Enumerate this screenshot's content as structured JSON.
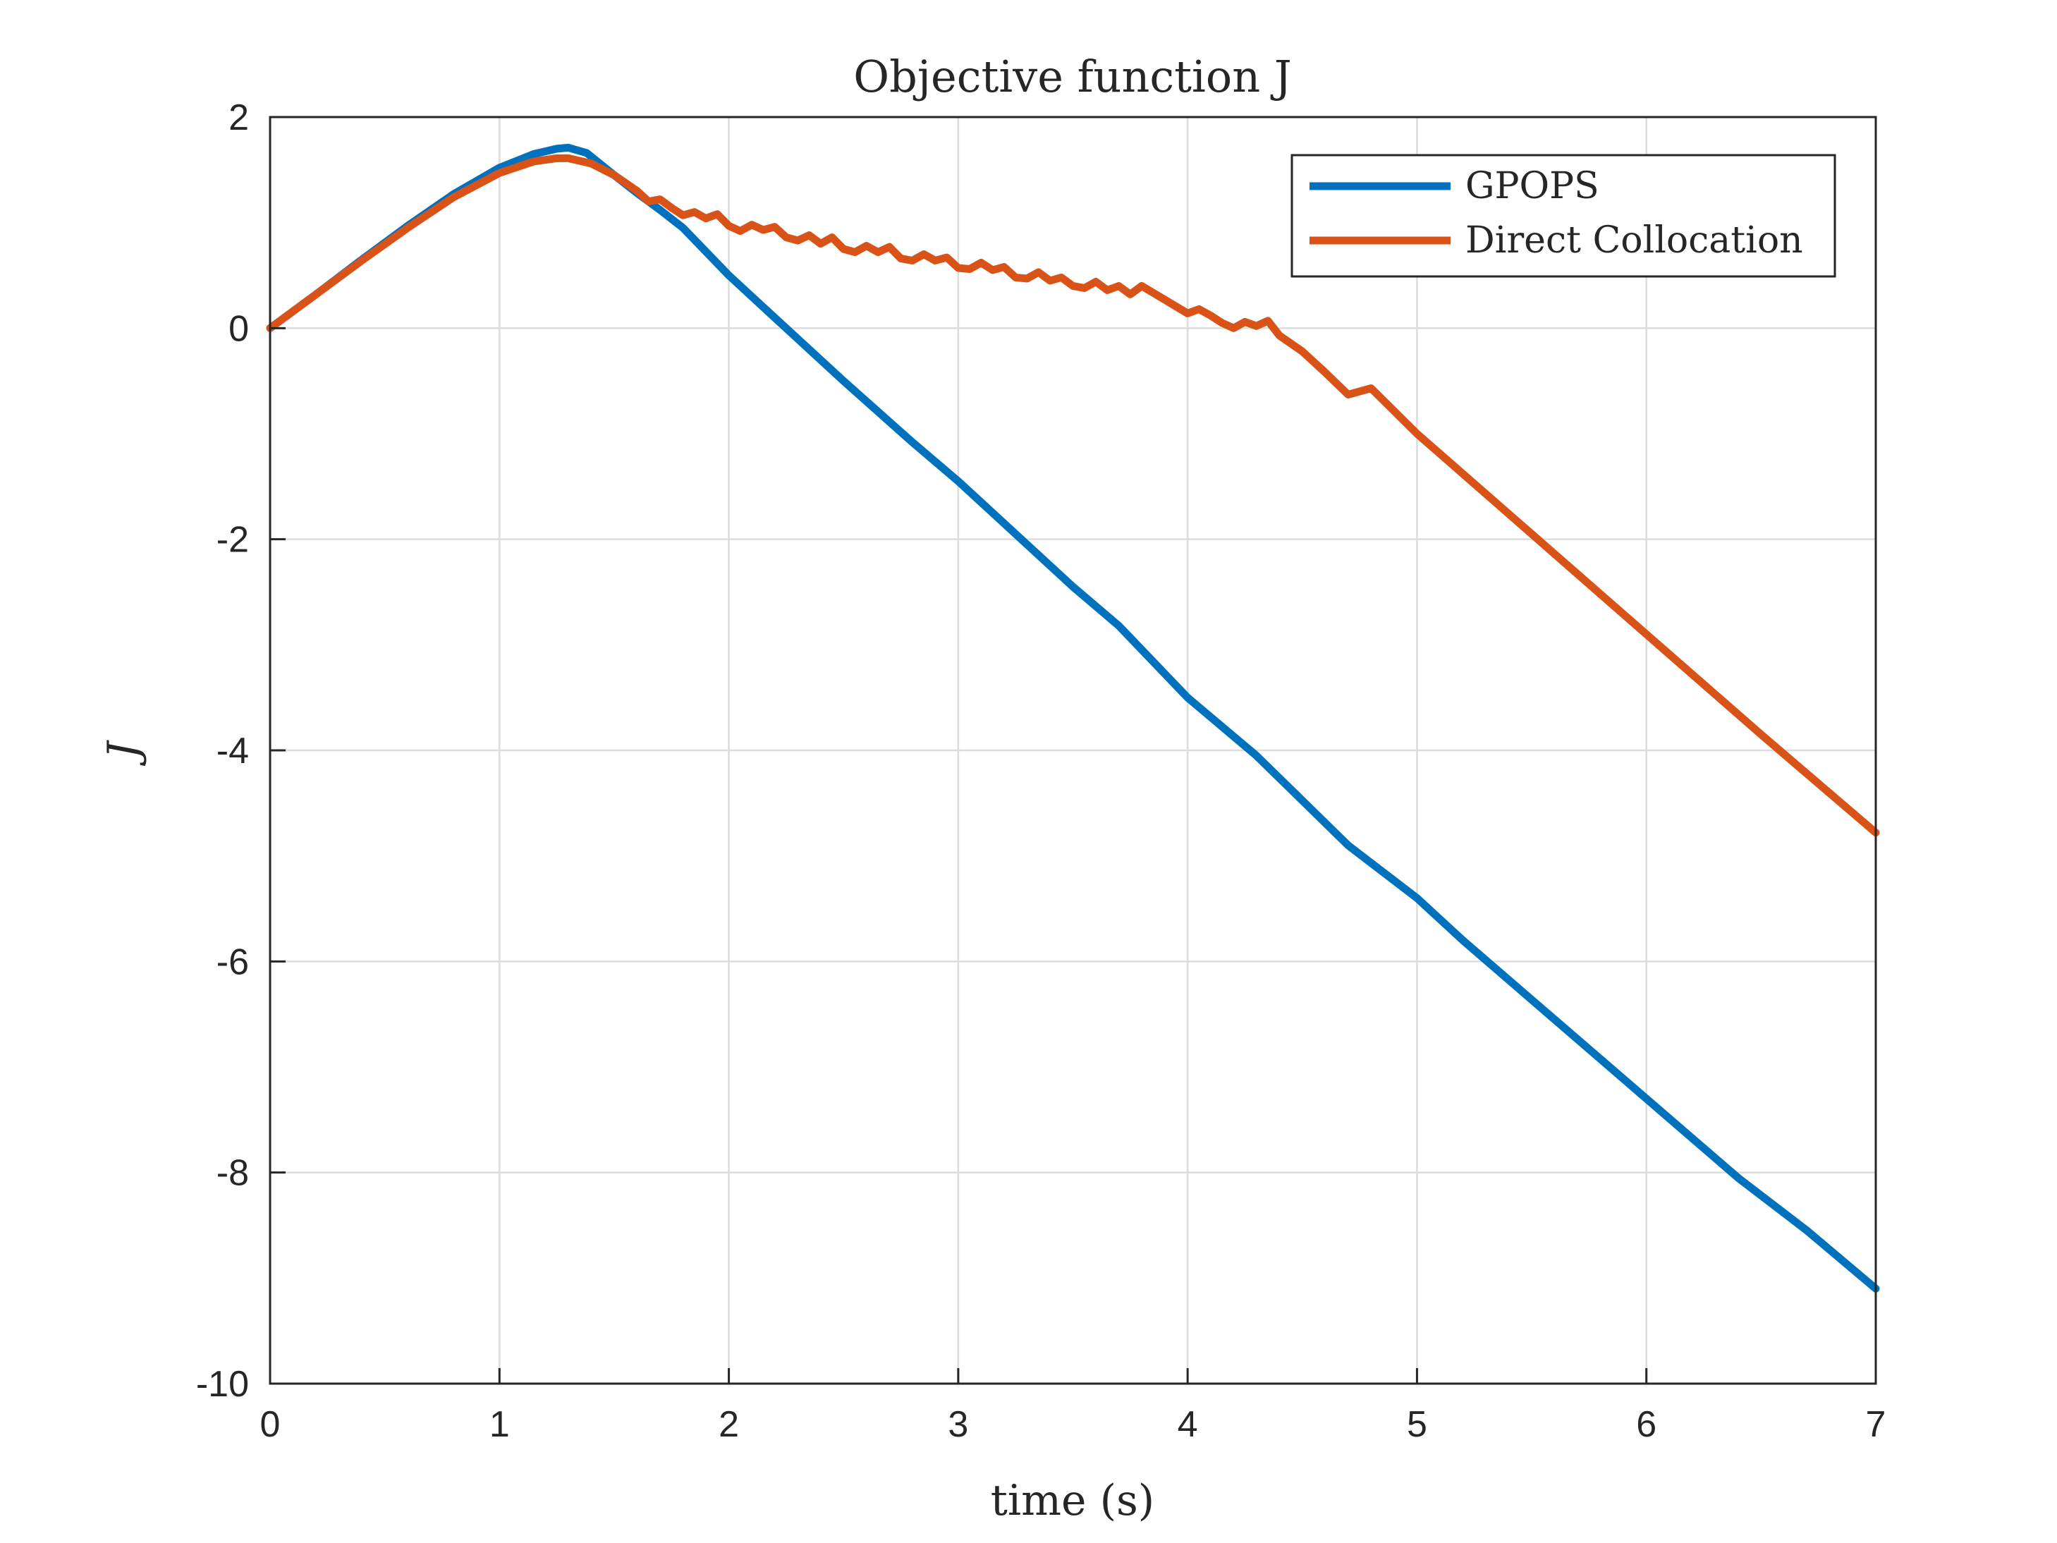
{
  "chart_data": {
    "type": "line",
    "title": "Objective function J",
    "xlabel": "time (s)",
    "ylabel": "J",
    "xlim": [
      0,
      7
    ],
    "ylim": [
      -10,
      2
    ],
    "xticks": [
      "0",
      "1",
      "2",
      "3",
      "4",
      "5",
      "6",
      "7"
    ],
    "yticks": [
      "2",
      "0",
      "-2",
      "-4",
      "-6",
      "-8",
      "-10"
    ],
    "grid": true,
    "legend": "top-right",
    "series": [
      {
        "name": "GPOPS",
        "color": "#0072BD",
        "x": [
          0,
          0.2,
          0.4,
          0.6,
          0.8,
          1.0,
          1.15,
          1.25,
          1.3,
          1.38,
          1.5,
          1.6,
          1.7,
          1.8,
          2.0,
          2.2,
          2.5,
          2.8,
          3.0,
          3.2,
          3.5,
          3.7,
          4.0,
          4.3,
          4.7,
          5.0,
          5.2,
          5.6,
          6.0,
          6.4,
          6.7,
          7.0
        ],
        "y": [
          0.0,
          0.32,
          0.65,
          0.97,
          1.27,
          1.52,
          1.65,
          1.7,
          1.71,
          1.66,
          1.45,
          1.28,
          1.12,
          0.95,
          0.5,
          0.1,
          -0.5,
          -1.08,
          -1.45,
          -1.85,
          -2.45,
          -2.82,
          -3.5,
          -4.05,
          -4.9,
          -5.4,
          -5.8,
          -6.55,
          -7.3,
          -8.05,
          -8.55,
          -9.1
        ]
      },
      {
        "name": "Direct Collocation",
        "color": "#D95319",
        "x": [
          0,
          0.2,
          0.4,
          0.6,
          0.8,
          1.0,
          1.15,
          1.25,
          1.3,
          1.4,
          1.5,
          1.6,
          1.65,
          1.7,
          1.75,
          1.8,
          1.85,
          1.9,
          1.95,
          2.0,
          2.05,
          2.1,
          2.15,
          2.2,
          2.25,
          2.3,
          2.35,
          2.4,
          2.45,
          2.5,
          2.55,
          2.6,
          2.65,
          2.7,
          2.75,
          2.8,
          2.85,
          2.9,
          2.95,
          3.0,
          3.05,
          3.1,
          3.15,
          3.2,
          3.25,
          3.3,
          3.35,
          3.4,
          3.45,
          3.5,
          3.55,
          3.6,
          3.65,
          3.7,
          3.75,
          3.8,
          3.9,
          4.0,
          4.05,
          4.1,
          4.15,
          4.2,
          4.25,
          4.3,
          4.35,
          4.4,
          4.5,
          4.6,
          4.7,
          4.75,
          4.8,
          5.0,
          5.5,
          6.0,
          6.5,
          7.0
        ],
        "y": [
          0.0,
          0.32,
          0.64,
          0.95,
          1.24,
          1.47,
          1.58,
          1.61,
          1.61,
          1.56,
          1.45,
          1.3,
          1.2,
          1.22,
          1.14,
          1.07,
          1.1,
          1.04,
          1.08,
          0.97,
          0.92,
          0.98,
          0.93,
          0.96,
          0.86,
          0.83,
          0.88,
          0.8,
          0.86,
          0.75,
          0.72,
          0.78,
          0.72,
          0.77,
          0.66,
          0.64,
          0.7,
          0.64,
          0.67,
          0.57,
          0.56,
          0.62,
          0.55,
          0.58,
          0.48,
          0.47,
          0.53,
          0.45,
          0.48,
          0.4,
          0.38,
          0.44,
          0.36,
          0.4,
          0.32,
          0.4,
          0.27,
          0.14,
          0.18,
          0.12,
          0.05,
          0.0,
          0.06,
          0.02,
          0.07,
          -0.07,
          -0.22,
          -0.42,
          -0.63,
          -0.6,
          -0.57,
          -1.0,
          -1.95,
          -2.9,
          -3.85,
          -4.78
        ]
      }
    ]
  }
}
